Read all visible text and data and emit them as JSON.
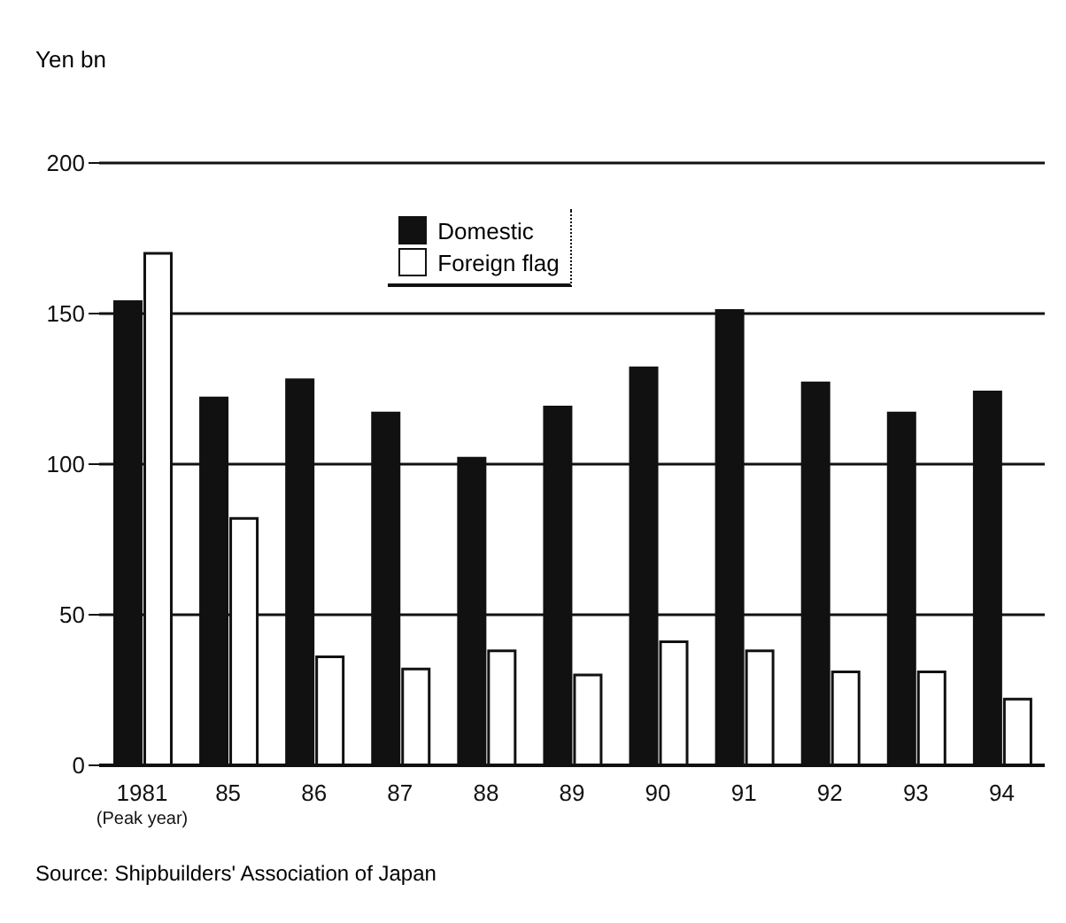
{
  "chart_data": {
    "type": "bar",
    "ylabel": "Yen bn",
    "categories": [
      "1981\n(Peak year)",
      "85",
      "86",
      "87",
      "88",
      "89",
      "90",
      "91",
      "92",
      "93",
      "94"
    ],
    "series": [
      {
        "name": "Domestic",
        "color": "#111111",
        "values": [
          154,
          122,
          128,
          117,
          102,
          119,
          132,
          151,
          127,
          117,
          124
        ]
      },
      {
        "name": "Foreign flag",
        "color": "#ffffff",
        "values": [
          170,
          82,
          36,
          32,
          38,
          30,
          41,
          38,
          31,
          31,
          22
        ]
      }
    ],
    "ylim": [
      0,
      200
    ],
    "yticks": [
      0,
      50,
      100,
      150,
      200
    ],
    "grid": "y",
    "legend": "top",
    "annotations": [
      "Source: Shipbuilders' Association of Japan"
    ]
  }
}
